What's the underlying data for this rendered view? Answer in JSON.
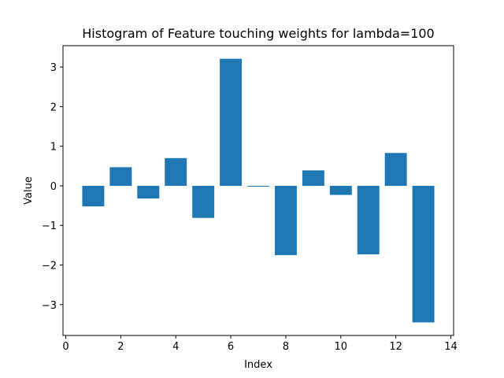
{
  "chart_data": {
    "type": "bar",
    "title": "Histogram of Feature touching weights for lambda=100",
    "xlabel": "Index",
    "ylabel": "Value",
    "x": [
      1,
      2,
      3,
      4,
      5,
      6,
      7,
      8,
      9,
      10,
      11,
      12,
      13
    ],
    "values": [
      -0.52,
      0.47,
      -0.32,
      0.7,
      -0.81,
      3.21,
      -0.02,
      -1.75,
      0.39,
      -0.23,
      -1.73,
      0.83,
      -3.45
    ],
    "xlim": [
      -0.1,
      14.1
    ],
    "ylim": [
      -3.78,
      3.54
    ],
    "xticks": [
      0,
      2,
      4,
      6,
      8,
      10,
      12,
      14
    ],
    "yticks": [
      -3,
      -2,
      -1,
      0,
      1,
      2,
      3
    ],
    "ytick_labels": [
      "−3",
      "−2",
      "−1",
      "0",
      "1",
      "2",
      "3"
    ],
    "bar_color": "#1f77b4",
    "grid": false,
    "legend": false
  }
}
